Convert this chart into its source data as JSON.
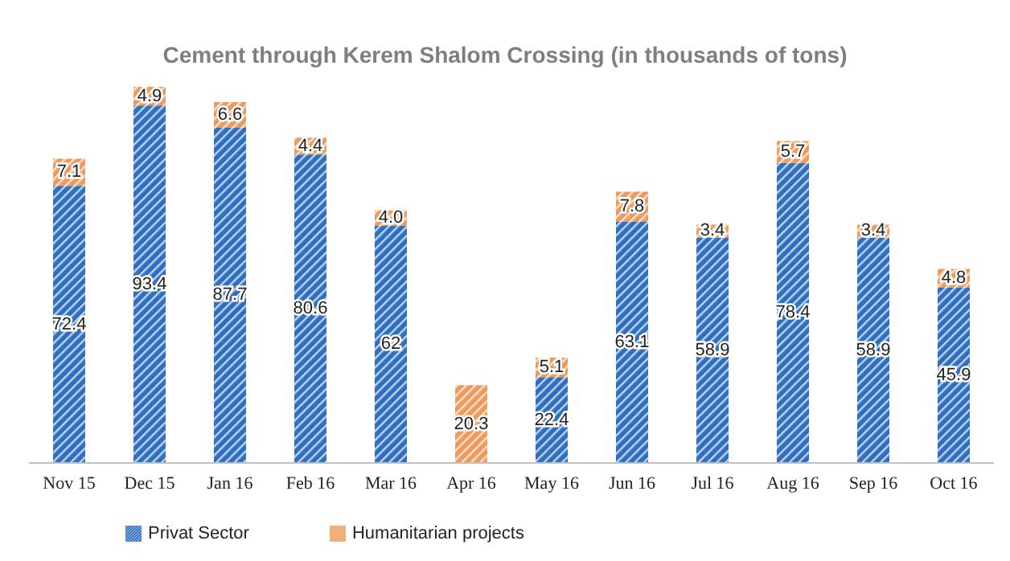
{
  "chart_data": {
    "type": "bar",
    "title": "Cement  through Kerem Shalom Crossing (in thousands of tons)",
    "stacked": true,
    "legend": "bottom left",
    "grid": false,
    "categories": [
      "Nov 15",
      "Dec 15",
      "Jan 16",
      "Feb 16",
      "Mar 16",
      "Apr 16",
      "May 16",
      "Jun 16",
      "Jul 16",
      "Aug 16",
      "Sep 16",
      "Oct 16"
    ],
    "series": [
      {
        "name": "Privat Sector",
        "color": "#2f6fbf",
        "values": [
          72.4,
          93.4,
          87.7,
          80.6,
          62,
          null,
          22.4,
          63.1,
          58.9,
          78.4,
          58.9,
          45.9
        ],
        "value_labels": [
          "72.4",
          "93.4",
          "87.7",
          "80.6",
          "62",
          null,
          "22.4",
          "63.1",
          "58.9",
          "78.4",
          "58.9",
          "45.9"
        ]
      },
      {
        "name": "Humanitarian projects",
        "color": "#ee9a5c",
        "values": [
          7.1,
          4.9,
          6.6,
          4.4,
          4.0,
          20.3,
          5.1,
          7.8,
          3.4,
          5.7,
          3.4,
          4.8
        ],
        "value_labels": [
          "7.1",
          "4.9",
          "6.6",
          "4.4",
          "4.0",
          "20.3",
          "5.1",
          "7.8",
          "3.4",
          "5.7",
          "3.4",
          "4.8"
        ]
      }
    ]
  }
}
